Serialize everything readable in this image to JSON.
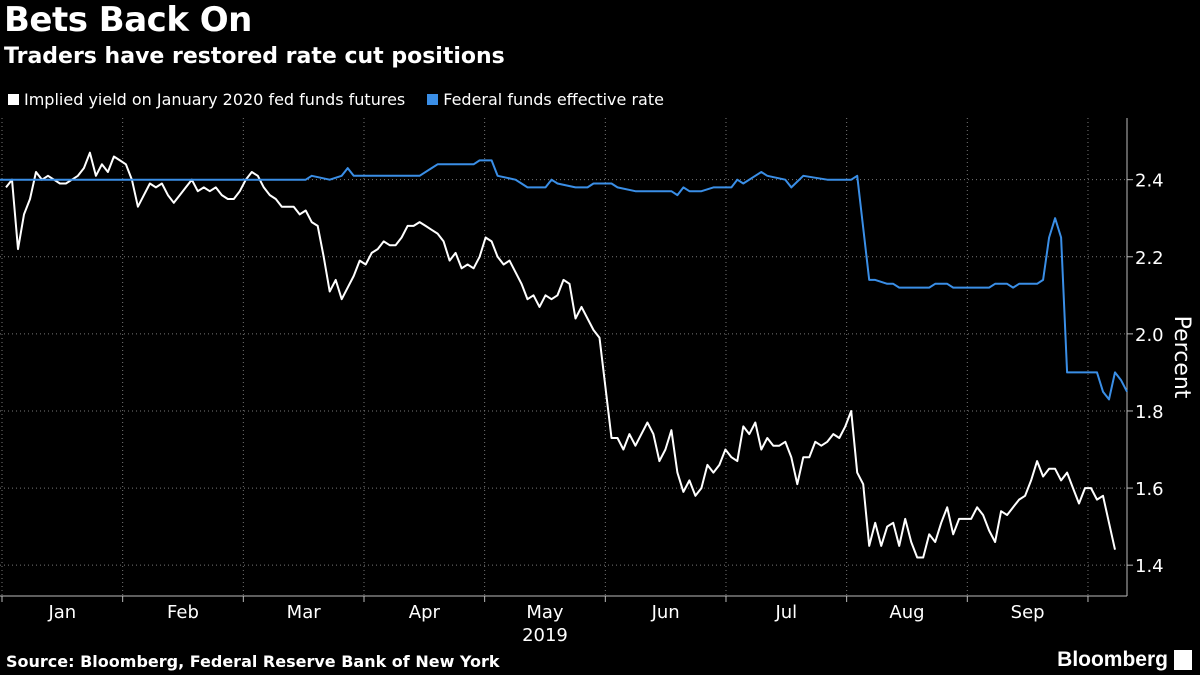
{
  "title": "Bets Back On",
  "subtitle": "Traders have restored rate cut positions",
  "source": "Source: Bloomberg, Federal Reserve Bank of New York",
  "brand": "Bloomberg",
  "chart_data": {
    "type": "line",
    "x_axis_label": "2019",
    "y_axis_label": "Percent",
    "y_ticks": [
      "1.4",
      "1.6",
      "1.8",
      "2.0",
      "2.2",
      "2.4"
    ],
    "ylim": [
      1.32,
      2.56
    ],
    "x_ticks": [
      "Jan",
      "Feb",
      "Mar",
      "Apr",
      "May",
      "Jun",
      "Jul",
      "Aug",
      "Sep"
    ],
    "grid": "vertical dotted at month boundaries",
    "legend_position": "top-left",
    "series": [
      {
        "name": "Implied yield on January 2020 fed funds futures",
        "color": "#ffffff",
        "points": [
          [
            1,
            2.38
          ],
          [
            2,
            2.4
          ],
          [
            3,
            2.22
          ],
          [
            4,
            2.31
          ],
          [
            5,
            2.35
          ],
          [
            6,
            2.42
          ],
          [
            7,
            2.4
          ],
          [
            8,
            2.41
          ],
          [
            9,
            2.4
          ],
          [
            10,
            2.39
          ],
          [
            11,
            2.39
          ],
          [
            12,
            2.4
          ],
          [
            13,
            2.41
          ],
          [
            14,
            2.43
          ],
          [
            15,
            2.47
          ],
          [
            16,
            2.41
          ],
          [
            17,
            2.44
          ],
          [
            18,
            2.42
          ],
          [
            19,
            2.46
          ],
          [
            20,
            2.45
          ],
          [
            21,
            2.44
          ],
          [
            22,
            2.4
          ],
          [
            23,
            2.33
          ],
          [
            24,
            2.36
          ],
          [
            25,
            2.39
          ],
          [
            26,
            2.38
          ],
          [
            27,
            2.39
          ],
          [
            28,
            2.36
          ],
          [
            29,
            2.34
          ],
          [
            30,
            2.36
          ],
          [
            31,
            2.38
          ],
          [
            32,
            2.4
          ],
          [
            33,
            2.37
          ],
          [
            34,
            2.38
          ],
          [
            35,
            2.37
          ],
          [
            36,
            2.38
          ],
          [
            37,
            2.36
          ],
          [
            38,
            2.35
          ],
          [
            39,
            2.35
          ],
          [
            40,
            2.37
          ],
          [
            41,
            2.4
          ],
          [
            42,
            2.42
          ],
          [
            43,
            2.41
          ],
          [
            44,
            2.38
          ],
          [
            45,
            2.36
          ],
          [
            46,
            2.35
          ],
          [
            47,
            2.33
          ],
          [
            48,
            2.33
          ],
          [
            49,
            2.33
          ],
          [
            50,
            2.31
          ],
          [
            51,
            2.32
          ],
          [
            52,
            2.29
          ],
          [
            53,
            2.28
          ],
          [
            54,
            2.2
          ],
          [
            55,
            2.11
          ],
          [
            56,
            2.14
          ],
          [
            57,
            2.09
          ],
          [
            58,
            2.12
          ],
          [
            59,
            2.15
          ],
          [
            60,
            2.19
          ],
          [
            61,
            2.18
          ],
          [
            62,
            2.21
          ],
          [
            63,
            2.22
          ],
          [
            64,
            2.24
          ],
          [
            65,
            2.23
          ],
          [
            66,
            2.23
          ],
          [
            67,
            2.25
          ],
          [
            68,
            2.28
          ],
          [
            69,
            2.28
          ],
          [
            70,
            2.29
          ],
          [
            71,
            2.28
          ],
          [
            72,
            2.27
          ],
          [
            73,
            2.26
          ],
          [
            74,
            2.24
          ],
          [
            75,
            2.19
          ],
          [
            76,
            2.21
          ],
          [
            77,
            2.17
          ],
          [
            78,
            2.18
          ],
          [
            79,
            2.17
          ],
          [
            80,
            2.2
          ],
          [
            81,
            2.25
          ],
          [
            82,
            2.24
          ],
          [
            83,
            2.2
          ],
          [
            84,
            2.18
          ],
          [
            85,
            2.19
          ],
          [
            86,
            2.16
          ],
          [
            87,
            2.13
          ],
          [
            88,
            2.09
          ],
          [
            89,
            2.1
          ],
          [
            90,
            2.07
          ],
          [
            91,
            2.1
          ],
          [
            92,
            2.09
          ],
          [
            93,
            2.1
          ],
          [
            94,
            2.14
          ],
          [
            95,
            2.13
          ],
          [
            96,
            2.04
          ],
          [
            97,
            2.07
          ],
          [
            98,
            2.04
          ],
          [
            99,
            2.01
          ],
          [
            100,
            1.99
          ],
          [
            101,
            1.86
          ],
          [
            102,
            1.73
          ],
          [
            103,
            1.73
          ],
          [
            104,
            1.7
          ],
          [
            105,
            1.74
          ],
          [
            106,
            1.71
          ],
          [
            107,
            1.74
          ],
          [
            108,
            1.77
          ],
          [
            109,
            1.74
          ],
          [
            110,
            1.67
          ],
          [
            111,
            1.7
          ],
          [
            112,
            1.75
          ],
          [
            113,
            1.64
          ],
          [
            114,
            1.59
          ],
          [
            115,
            1.62
          ],
          [
            116,
            1.58
          ],
          [
            117,
            1.6
          ],
          [
            118,
            1.66
          ],
          [
            119,
            1.64
          ],
          [
            120,
            1.66
          ],
          [
            121,
            1.7
          ],
          [
            122,
            1.68
          ],
          [
            123,
            1.67
          ],
          [
            124,
            1.76
          ],
          [
            125,
            1.74
          ],
          [
            126,
            1.77
          ],
          [
            127,
            1.7
          ],
          [
            128,
            1.73
          ],
          [
            129,
            1.71
          ],
          [
            130,
            1.71
          ],
          [
            131,
            1.72
          ],
          [
            132,
            1.68
          ],
          [
            133,
            1.61
          ],
          [
            134,
            1.68
          ],
          [
            135,
            1.68
          ],
          [
            136,
            1.72
          ],
          [
            137,
            1.71
          ],
          [
            138,
            1.72
          ],
          [
            139,
            1.74
          ],
          [
            140,
            1.73
          ],
          [
            141,
            1.76
          ],
          [
            142,
            1.8
          ],
          [
            143,
            1.64
          ],
          [
            144,
            1.61
          ],
          [
            145,
            1.45
          ],
          [
            146,
            1.51
          ],
          [
            147,
            1.45
          ],
          [
            148,
            1.5
          ],
          [
            149,
            1.51
          ],
          [
            150,
            1.45
          ],
          [
            151,
            1.52
          ],
          [
            152,
            1.46
          ],
          [
            153,
            1.42
          ],
          [
            154,
            1.42
          ],
          [
            155,
            1.48
          ],
          [
            156,
            1.46
          ],
          [
            157,
            1.51
          ],
          [
            158,
            1.55
          ],
          [
            159,
            1.48
          ],
          [
            160,
            1.52
          ],
          [
            161,
            1.52
          ],
          [
            162,
            1.52
          ],
          [
            163,
            1.55
          ],
          [
            164,
            1.53
          ],
          [
            165,
            1.49
          ],
          [
            166,
            1.46
          ],
          [
            167,
            1.54
          ],
          [
            168,
            1.53
          ],
          [
            169,
            1.55
          ],
          [
            170,
            1.57
          ],
          [
            171,
            1.58
          ],
          [
            172,
            1.62
          ],
          [
            173,
            1.67
          ],
          [
            174,
            1.63
          ],
          [
            175,
            1.65
          ],
          [
            176,
            1.65
          ],
          [
            177,
            1.62
          ],
          [
            178,
            1.64
          ],
          [
            179,
            1.6
          ],
          [
            180,
            1.56
          ],
          [
            181,
            1.6
          ],
          [
            182,
            1.6
          ],
          [
            183,
            1.57
          ],
          [
            184,
            1.58
          ],
          [
            185,
            1.51
          ],
          [
            186,
            1.44
          ]
        ]
      },
      {
        "name": "Federal funds effective rate",
        "color": "#3a8ee6",
        "points": [
          [
            0,
            2.4
          ],
          [
            51,
            2.4
          ],
          [
            52,
            2.41
          ],
          [
            55,
            2.4
          ],
          [
            57,
            2.41
          ],
          [
            58,
            2.43
          ],
          [
            59,
            2.41
          ],
          [
            70,
            2.41
          ],
          [
            72,
            2.43
          ],
          [
            73,
            2.44
          ],
          [
            79,
            2.44
          ],
          [
            80,
            2.45
          ],
          [
            82,
            2.45
          ],
          [
            83,
            2.41
          ],
          [
            86,
            2.4
          ],
          [
            87,
            2.39
          ],
          [
            88,
            2.38
          ],
          [
            91,
            2.38
          ],
          [
            92,
            2.4
          ],
          [
            93,
            2.39
          ],
          [
            96,
            2.38
          ],
          [
            98,
            2.38
          ],
          [
            99,
            2.39
          ],
          [
            102,
            2.39
          ],
          [
            103,
            2.38
          ],
          [
            106,
            2.37
          ],
          [
            112,
            2.37
          ],
          [
            113,
            2.36
          ],
          [
            114,
            2.38
          ],
          [
            115,
            2.37
          ],
          [
            117,
            2.37
          ],
          [
            119,
            2.38
          ],
          [
            122,
            2.38
          ],
          [
            123,
            2.4
          ],
          [
            124,
            2.39
          ],
          [
            126,
            2.41
          ],
          [
            127,
            2.42
          ],
          [
            128,
            2.41
          ],
          [
            131,
            2.4
          ],
          [
            132,
            2.38
          ],
          [
            134,
            2.41
          ],
          [
            138,
            2.4
          ],
          [
            142,
            2.4
          ],
          [
            143,
            2.41
          ],
          [
            145,
            2.14
          ],
          [
            146,
            2.14
          ],
          [
            148,
            2.13
          ],
          [
            149,
            2.13
          ],
          [
            150,
            2.12
          ],
          [
            155,
            2.12
          ],
          [
            156,
            2.13
          ],
          [
            158,
            2.13
          ],
          [
            159,
            2.12
          ],
          [
            165,
            2.12
          ],
          [
            166,
            2.13
          ],
          [
            168,
            2.13
          ],
          [
            169,
            2.12
          ],
          [
            170,
            2.13
          ],
          [
            173,
            2.13
          ],
          [
            174,
            2.14
          ],
          [
            175,
            2.25
          ],
          [
            176,
            2.3
          ],
          [
            177,
            2.25
          ],
          [
            178,
            1.9
          ],
          [
            183,
            1.9
          ],
          [
            184,
            1.85
          ],
          [
            185,
            1.83
          ],
          [
            186,
            1.9
          ],
          [
            187,
            1.88
          ],
          [
            188,
            1.85
          ]
        ]
      }
    ]
  }
}
